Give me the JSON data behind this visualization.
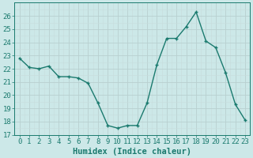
{
  "x": [
    0,
    1,
    2,
    3,
    4,
    5,
    6,
    7,
    8,
    9,
    10,
    11,
    12,
    13,
    14,
    15,
    16,
    17,
    18,
    19,
    20,
    21,
    22,
    23
  ],
  "y": [
    22.8,
    22.1,
    22.0,
    22.2,
    21.4,
    21.4,
    21.3,
    20.9,
    19.4,
    17.7,
    17.5,
    17.7,
    17.7,
    19.4,
    22.3,
    24.3,
    24.3,
    25.2,
    26.3,
    24.1,
    23.6,
    21.7,
    19.3,
    18.1
  ],
  "line_color": "#1a7a6e",
  "marker": "+",
  "marker_size": 4,
  "bg_color": "#cce8e8",
  "grid_color": "#b8d0d0",
  "grid_color_minor": "#c8dcdc",
  "xlabel": "Humidex (Indice chaleur)",
  "xlim": [
    -0.5,
    23.5
  ],
  "ylim": [
    17,
    27
  ],
  "yticks": [
    17,
    18,
    19,
    20,
    21,
    22,
    23,
    24,
    25,
    26
  ],
  "xticks": [
    0,
    1,
    2,
    3,
    4,
    5,
    6,
    7,
    8,
    9,
    10,
    11,
    12,
    13,
    14,
    15,
    16,
    17,
    18,
    19,
    20,
    21,
    22,
    23
  ],
  "tick_label_fontsize": 6.5,
  "xlabel_fontsize": 7.5
}
